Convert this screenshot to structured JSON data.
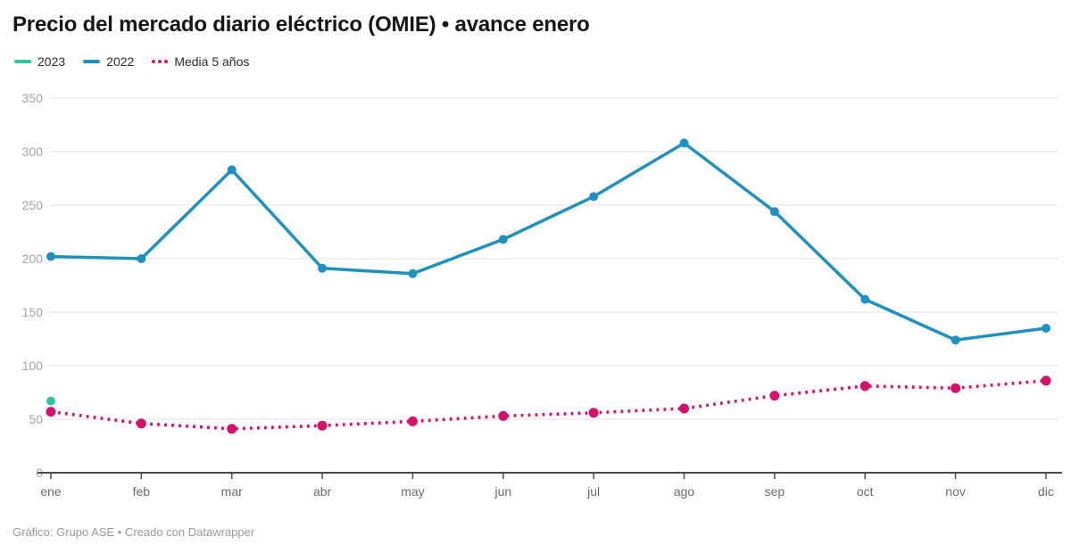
{
  "header": {
    "title": "Precio del mercado diario eléctrico (OMIE) • avance enero"
  },
  "legend": {
    "items": [
      {
        "label": "2023",
        "color": "#2cc8a0",
        "style": "solid"
      },
      {
        "label": "2022",
        "color": "#1e91c0",
        "style": "solid"
      },
      {
        "label": "Media 5 años",
        "color": "#d5116c",
        "style": "dotted"
      }
    ]
  },
  "chart_data": {
    "type": "line",
    "title": "Precio del mercado diario eléctrico (OMIE) • avance enero",
    "xlabel": "",
    "ylabel": "",
    "categories": [
      "ene",
      "feb",
      "mar",
      "abr",
      "may",
      "jun",
      "jul",
      "ago",
      "sep",
      "oct",
      "nov",
      "dic"
    ],
    "series": [
      {
        "name": "2023",
        "color": "#2cc8a0",
        "style": "solid",
        "values": [
          67,
          null,
          null,
          null,
          null,
          null,
          null,
          null,
          null,
          null,
          null,
          null
        ]
      },
      {
        "name": "2022",
        "color": "#1e91c0",
        "style": "solid",
        "values": [
          202,
          200,
          283,
          191,
          186,
          218,
          258,
          308,
          244,
          162,
          124,
          135
        ]
      },
      {
        "name": "Media 5 años",
        "color": "#d5116c",
        "style": "dotted",
        "values": [
          57,
          46,
          41,
          44,
          48,
          53,
          56,
          60,
          72,
          81,
          79,
          86
        ]
      }
    ],
    "ylim": [
      0,
      350
    ],
    "yticks": [
      0,
      50,
      100,
      150,
      200,
      250,
      300,
      350
    ],
    "grid": "horizontal",
    "legend_position": "top-left"
  },
  "footer": {
    "credit": "Gráfico: Grupo ASE • Creado con Datawrapper"
  },
  "colors": {
    "gridline": "#e6e6e6",
    "axis": "#4a4a4a",
    "y_label": "#a5a5a5",
    "x_label": "#6c6c6c"
  }
}
